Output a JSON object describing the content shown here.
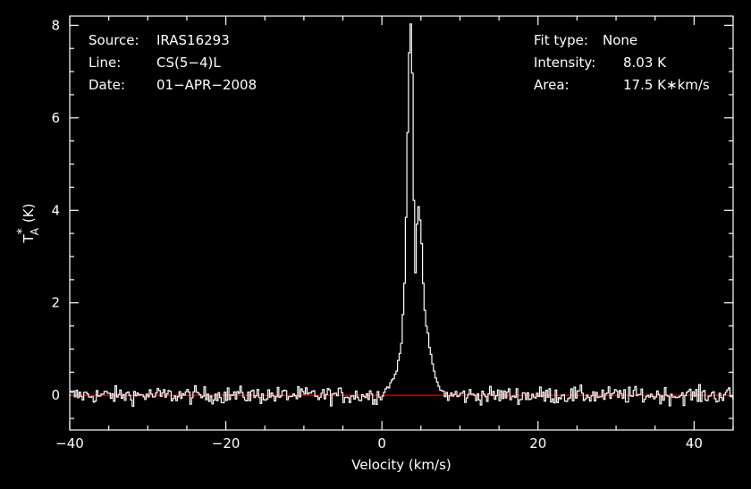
{
  "chart_data": {
    "type": "line",
    "xlabel": "Velocity (km/s)",
    "ylabel": {
      "symbol": "T",
      "superscript": "*",
      "subscript": "A",
      "unit": "(K)"
    },
    "xlim": [
      -40,
      45
    ],
    "ylim": [
      -0.75,
      8.2
    ],
    "x_ticks": [
      -40,
      -20,
      0,
      20,
      40
    ],
    "y_ticks": [
      0,
      2,
      4,
      6,
      8
    ],
    "x_ticklabels": [
      "−40",
      "−20",
      "0",
      "20",
      "40"
    ],
    "y_ticklabels": [
      "0",
      "2",
      "4",
      "6",
      "8"
    ],
    "grid": false,
    "baseline": 0,
    "series": [
      {
        "style": "step",
        "color": "#ffffff",
        "noise_sigma": 0.09,
        "peak": [
          {
            "x": 0.0,
            "y": 0.02
          },
          {
            "x": 0.5,
            "y": 0.15
          },
          {
            "x": 1.0,
            "y": 0.25
          },
          {
            "x": 1.5,
            "y": 0.4
          },
          {
            "x": 2.0,
            "y": 0.7
          },
          {
            "x": 2.4,
            "y": 1.1
          },
          {
            "x": 2.8,
            "y": 2.4
          },
          {
            "x": 3.1,
            "y": 4.6
          },
          {
            "x": 3.3,
            "y": 6.8
          },
          {
            "x": 3.5,
            "y": 7.95
          },
          {
            "x": 3.6,
            "y": 8.03
          },
          {
            "x": 3.8,
            "y": 7.0
          },
          {
            "x": 4.0,
            "y": 4.2
          },
          {
            "x": 4.2,
            "y": 2.7
          },
          {
            "x": 4.4,
            "y": 3.7
          },
          {
            "x": 4.6,
            "y": 4.1
          },
          {
            "x": 4.9,
            "y": 3.6
          },
          {
            "x": 5.2,
            "y": 2.4
          },
          {
            "x": 5.5,
            "y": 1.6
          },
          {
            "x": 5.8,
            "y": 1.3
          },
          {
            "x": 6.1,
            "y": 0.9
          },
          {
            "x": 6.4,
            "y": 0.7
          },
          {
            "x": 6.8,
            "y": 0.35
          },
          {
            "x": 7.2,
            "y": 0.2
          },
          {
            "x": 7.6,
            "y": 0.1
          },
          {
            "x": 8.0,
            "y": 0.02
          }
        ]
      }
    ],
    "colors": {
      "background": "#000000",
      "axes": "#ffffff",
      "spectrum": "#ffffff",
      "baseline": "#cc0000"
    }
  },
  "info_left": {
    "source_label": "Source:",
    "source_value": "IRAS16293",
    "line_label": "Line:",
    "line_value": "CS(5−4)L",
    "date_label": "Date:",
    "date_value": "01−APR−2008"
  },
  "info_right": {
    "fit_label": "Fit type:",
    "fit_value": "None",
    "intensity_label": "Intensity:",
    "intensity_value": "8.03 K",
    "area_label": "Area:",
    "area_value": "17.5 K∗km/s"
  }
}
